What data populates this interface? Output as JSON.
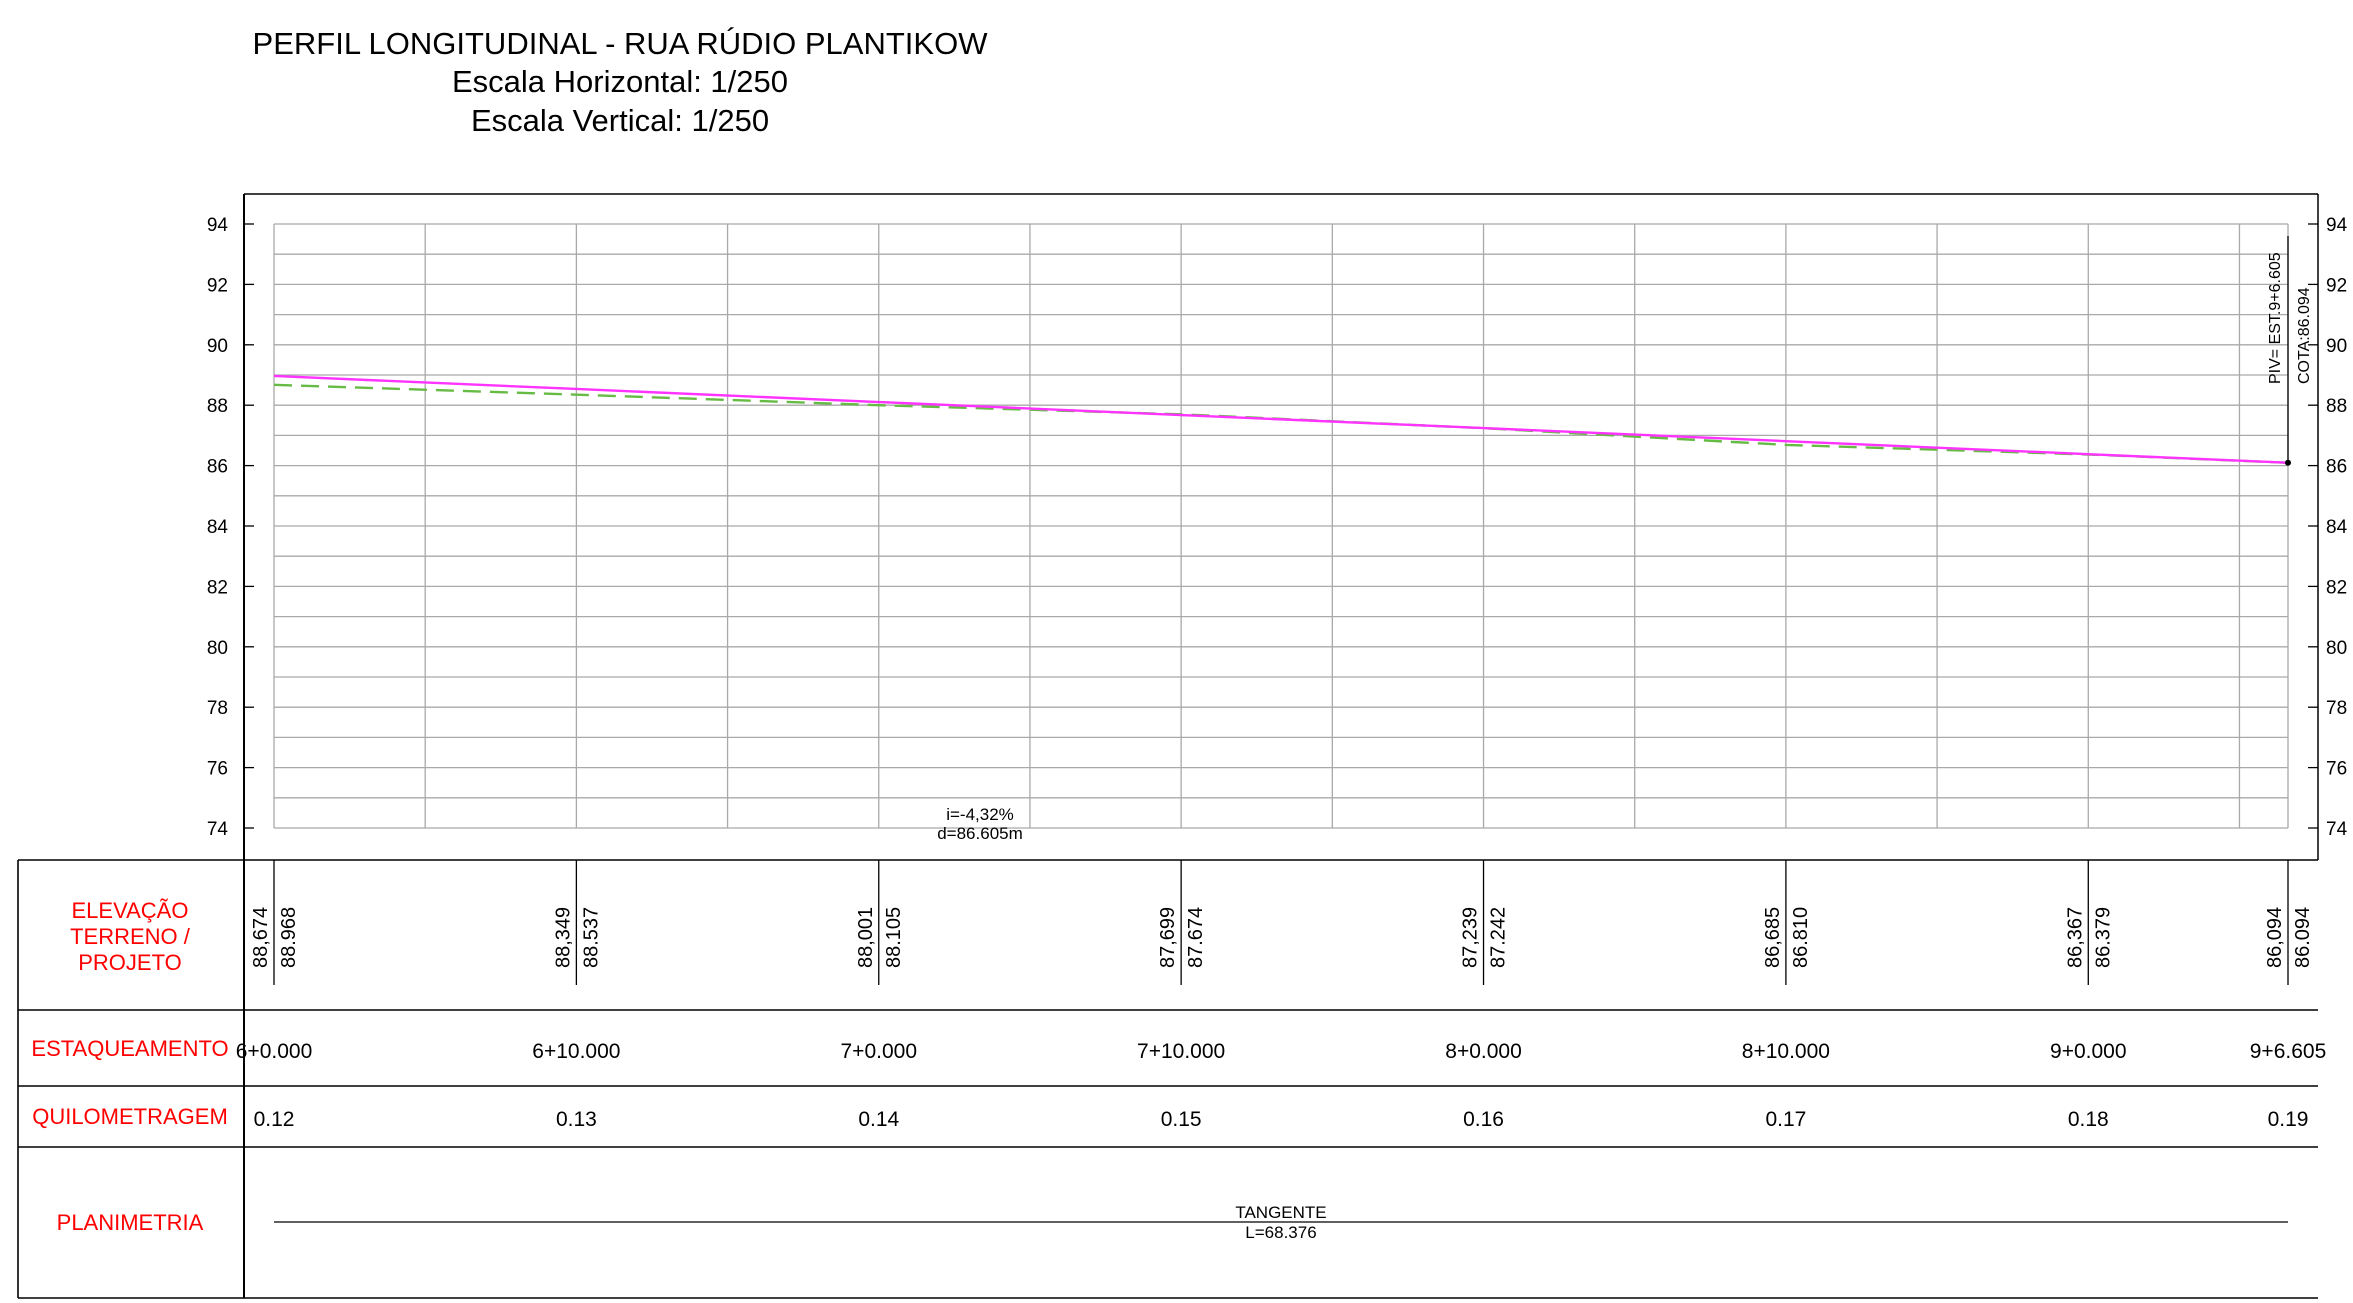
{
  "title": {
    "main": "PERFIL LONGITUDINAL - RUA RÚDIO PLANTIKOW",
    "scale_h": "Escala Horizontal: 1/250",
    "scale_v": "Escala Vertical: 1/250"
  },
  "colors": {
    "grid": "#a9a9a9",
    "frame": "#000000",
    "label": "#ff0000",
    "project_line": "#ff33ff",
    "terrain_line": "#66bb44"
  },
  "chart_data": {
    "type": "line",
    "x_stations": [
      "6+0.000",
      "6+10.000",
      "7+0.000",
      "7+10.000",
      "8+0.000",
      "8+10.000",
      "9+0.000",
      "9+6.605"
    ],
    "x": [
      0,
      10,
      20,
      30,
      40,
      50,
      60,
      66.605
    ],
    "ylim": [
      74,
      94
    ],
    "y_ticks": [
      "74",
      "76",
      "78",
      "80",
      "82",
      "84",
      "86",
      "88",
      "90",
      "92",
      "94"
    ],
    "series": [
      {
        "role": "terreno",
        "style": "dashed",
        "color": "#66bb44",
        "values": [
          88.674,
          88.349,
          88.001,
          87.699,
          87.239,
          86.685,
          86.367,
          86.094
        ]
      },
      {
        "role": "projeto",
        "style": "solid",
        "color": "#ff33ff",
        "values": [
          88.968,
          88.537,
          88.105,
          87.674,
          87.242,
          86.81,
          86.379,
          86.094
        ]
      }
    ],
    "annotations": {
      "slope": "i=-4,32%",
      "distance": "d=86.605m",
      "piv_station": "PIV= EST.9+6.605",
      "piv_cota": "COTA:86.094"
    }
  },
  "table": {
    "row_labels": {
      "elevacao": [
        "ELEVAÇÃO",
        "TERRENO /",
        "PROJETO"
      ],
      "estaqueamento": "ESTAQUEAMENTO",
      "quilometragem": "QUILOMETRAGEM",
      "planimetria": "PLANIMETRIA"
    },
    "terreno_values": [
      "88,674",
      "88,349",
      "88,001",
      "87,699",
      "87,239",
      "86,685",
      "86,367",
      "86,094"
    ],
    "projeto_values": [
      "88.968",
      "88.537",
      "88.105",
      "87.674",
      "87.242",
      "86.810",
      "86.379",
      "86.094"
    ],
    "km_values": [
      "0.12",
      "0.13",
      "0.14",
      "0.15",
      "0.16",
      "0.17",
      "0.18",
      "0.19"
    ],
    "planimetria": {
      "label": "TANGENTE",
      "length": "L=68.376"
    }
  }
}
